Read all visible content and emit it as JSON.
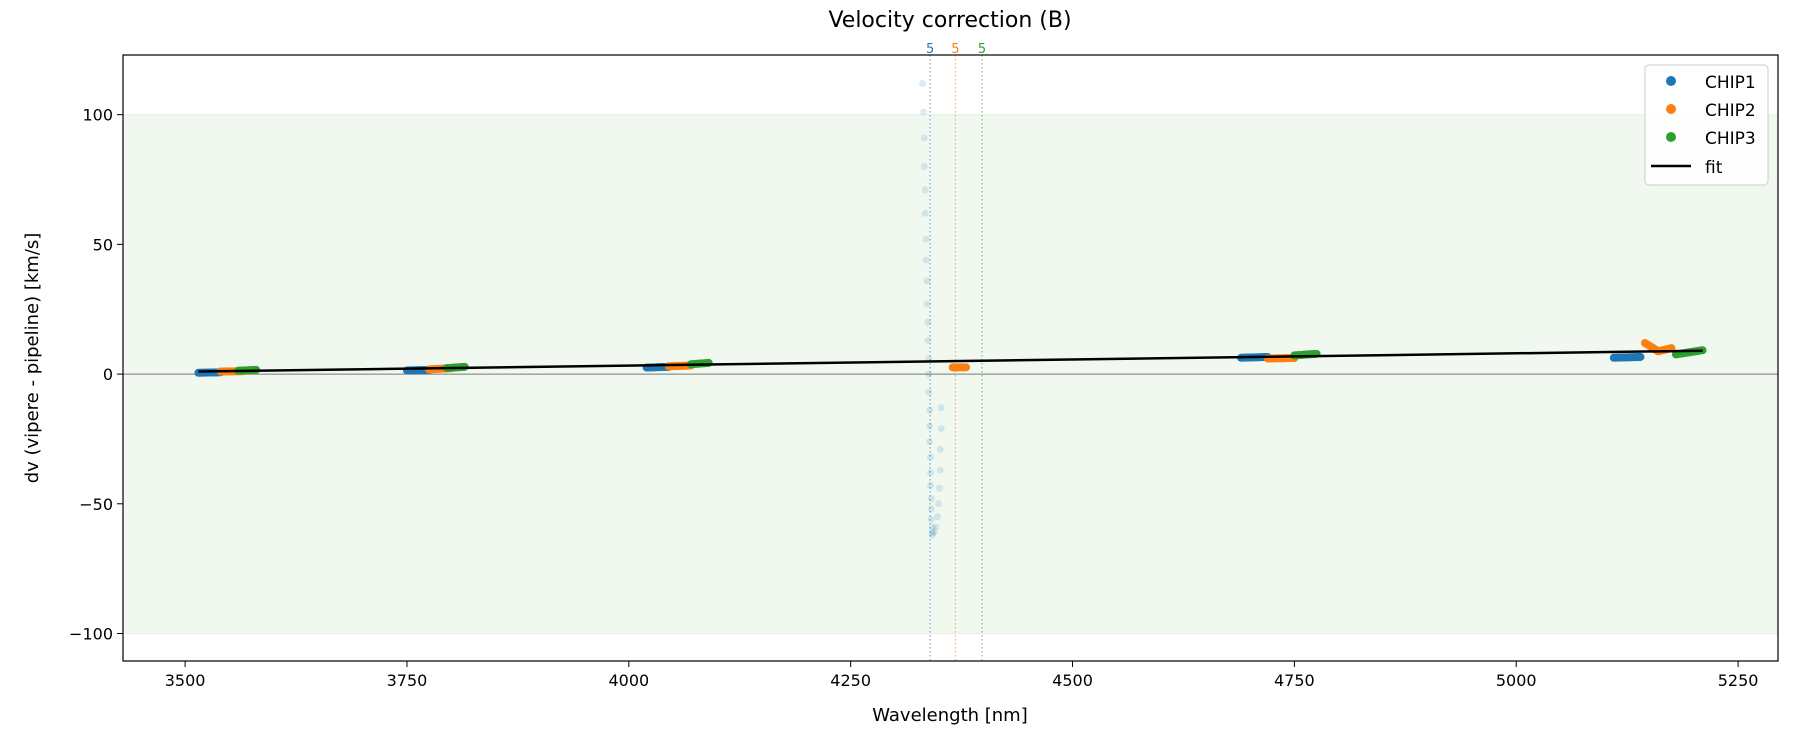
{
  "chart_data": {
    "type": "scatter",
    "title": "Velocity correction (B)",
    "xlabel": "Wavelength [nm]",
    "ylabel": "dv (vipere - pipeline) [km/s]",
    "xlim": [
      3430,
      5295
    ],
    "ylim": [
      -110.6,
      123
    ],
    "xticks": [
      3500,
      3750,
      4000,
      4250,
      4500,
      4750,
      5000,
      5250
    ],
    "yticks": [
      -100,
      -50,
      0,
      50,
      100
    ],
    "ytick_labels": [
      "−100",
      "−50",
      "0",
      "50",
      "100"
    ],
    "band": {
      "from": -100,
      "to": 100,
      "color": "#2ca02c"
    },
    "zero_line": 0,
    "legend_position": "top-right",
    "legend": [
      "CHIP1",
      "CHIP2",
      "CHIP3",
      "fit"
    ],
    "colors": {
      "CHIP1": "#1f77b4",
      "CHIP2": "#ff7f0e",
      "CHIP3": "#2ca02c",
      "fit": "#000000"
    },
    "markers": [
      {
        "x": 4339.5,
        "label": "5",
        "series": "CHIP1"
      },
      {
        "x": 4368,
        "label": "5",
        "series": "CHIP2"
      },
      {
        "x": 4398,
        "label": "5",
        "series": "CHIP3"
      }
    ],
    "series": [
      {
        "name": "CHIP1",
        "segments": [
          {
            "x": [
              3515,
              3540
            ],
            "y": [
              0.5,
              0.7
            ]
          },
          {
            "x": [
              3750,
              3775
            ],
            "y": [
              1.4,
              1.6
            ]
          },
          {
            "x": [
              4020,
              4045
            ],
            "y": [
              2.5,
              2.8
            ]
          },
          {
            "x": [
              4690,
              4720
            ],
            "y": [
              6.3,
              6.6
            ]
          },
          {
            "x": [
              5110,
              5140
            ],
            "y": [
              6.3,
              6.6
            ]
          }
        ]
      },
      {
        "name": "CHIP2",
        "segments": [
          {
            "x": [
              3540,
              3565
            ],
            "y": [
              1.0,
              1.1
            ]
          },
          {
            "x": [
              3775,
              3800
            ],
            "y": [
              1.8,
              2.3
            ]
          },
          {
            "x": [
              4045,
              4070
            ],
            "y": [
              3.0,
              3.3
            ]
          },
          {
            "x": [
              4365,
              4380
            ],
            "y": [
              2.6,
              2.6
            ]
          },
          {
            "x": [
              4720,
              4750
            ],
            "y": [
              6.0,
              6.2
            ]
          },
          {
            "x": [
              5145,
              5160
            ],
            "y": [
              12.0,
              8.8
            ]
          },
          {
            "x": [
              5160,
              5175
            ],
            "y": [
              8.8,
              10.0
            ]
          }
        ]
      },
      {
        "name": "CHIP3",
        "segments": [
          {
            "x": [
              3560,
              3580
            ],
            "y": [
              1.3,
              1.6
            ]
          },
          {
            "x": [
              3795,
              3815
            ],
            "y": [
              2.3,
              2.8
            ]
          },
          {
            "x": [
              4070,
              4090
            ],
            "y": [
              3.8,
              4.3
            ]
          },
          {
            "x": [
              4750,
              4775
            ],
            "y": [
              7.2,
              7.8
            ]
          },
          {
            "x": [
              5180,
              5210
            ],
            "y": [
              7.6,
              9.2
            ]
          }
        ]
      }
    ],
    "rejected": {
      "series": "CHIP1",
      "points": [
        [
          4331,
          112
        ],
        [
          4332,
          101
        ],
        [
          4333,
          91
        ],
        [
          4333,
          80
        ],
        [
          4334,
          71
        ],
        [
          4334,
          62
        ],
        [
          4335,
          52
        ],
        [
          4335,
          44
        ],
        [
          4336,
          36
        ],
        [
          4336,
          27
        ],
        [
          4337,
          20
        ],
        [
          4337,
          13
        ],
        [
          4338,
          6
        ],
        [
          4338,
          0
        ],
        [
          4338,
          -7
        ],
        [
          4339,
          -14
        ],
        [
          4339,
          -20
        ],
        [
          4339,
          -26
        ],
        [
          4340,
          -32
        ],
        [
          4340,
          -38
        ],
        [
          4340,
          -43
        ],
        [
          4341,
          -48
        ],
        [
          4341,
          -52
        ],
        [
          4341,
          -56
        ],
        [
          4342,
          -59
        ],
        [
          4342,
          -61
        ],
        [
          4342,
          -62
        ],
        [
          4352,
          -13
        ],
        [
          4352,
          -21
        ],
        [
          4351,
          -29
        ],
        [
          4351,
          -37
        ],
        [
          4350,
          -44
        ],
        [
          4349,
          -50
        ],
        [
          4348,
          -55
        ],
        [
          4346,
          -59
        ],
        [
          4344,
          -61
        ]
      ]
    },
    "fit": {
      "x": [
        3515,
        5210
      ],
      "y": [
        1.0,
        9.0
      ]
    }
  }
}
